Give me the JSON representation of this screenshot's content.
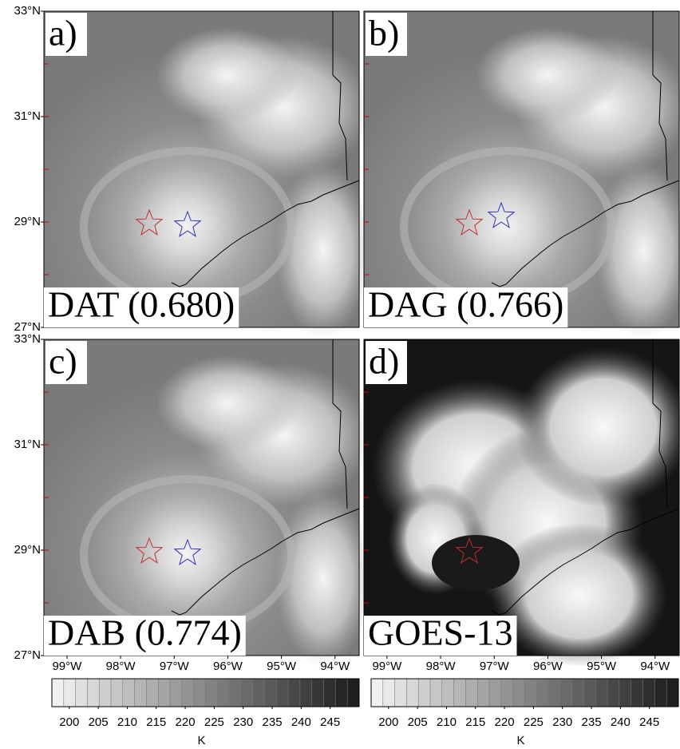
{
  "panels": [
    {
      "label": "a)",
      "title": "DAT (0.680)"
    },
    {
      "label": "b)",
      "title": "DAG (0.766)"
    },
    {
      "label": "c)",
      "title": "DAB (0.774)"
    },
    {
      "label": "d)",
      "title": "GOES-13"
    }
  ],
  "lat_range": [
    27,
    33
  ],
  "lat_ticks": [
    {
      "value": 33,
      "label": "33°N"
    },
    {
      "value": 31,
      "label": "31°N"
    },
    {
      "value": 29,
      "label": "29°N"
    },
    {
      "value": 27,
      "label": "27°N"
    }
  ],
  "lon_range": [
    -99.43,
    -93.55
  ],
  "lon_ticks": [
    {
      "value": -99,
      "label": "99°W"
    },
    {
      "value": -98,
      "label": "98°W"
    },
    {
      "value": -97,
      "label": "97°W"
    },
    {
      "value": -96,
      "label": "96°W"
    },
    {
      "value": -95,
      "label": "95°W"
    },
    {
      "value": -94,
      "label": "94°W"
    }
  ],
  "colorbars": [
    {
      "range": [
        197,
        250
      ],
      "ticks": [
        200,
        205,
        210,
        215,
        220,
        225,
        230,
        235,
        240,
        245
      ],
      "unit": "K"
    },
    {
      "range": [
        197,
        250
      ],
      "ticks": [
        200,
        205,
        210,
        215,
        220,
        225,
        230,
        235,
        240,
        245
      ],
      "unit": "K"
    }
  ]
}
